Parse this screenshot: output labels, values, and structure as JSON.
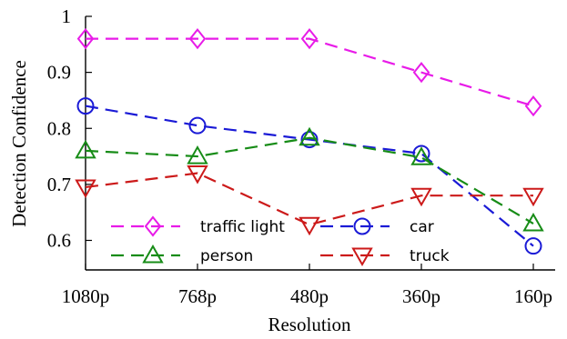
{
  "chart_data": {
    "type": "line",
    "title": "",
    "xlabel": "Resolution",
    "ylabel": "Detection Confidence",
    "x_categories": [
      "1080p",
      "768p",
      "480p",
      "360p",
      "160p"
    ],
    "ylim": [
      0.55,
      1.0
    ],
    "yticks": [
      "0.6",
      "0.7",
      "0.8",
      "0.9",
      "1"
    ],
    "ytick_values": [
      0.6,
      0.7,
      0.8,
      0.9,
      1.0
    ],
    "grid": false,
    "legend_position": "bottom, two columns, inside plot",
    "series": [
      {
        "name": "traffic light",
        "color": "#e81be8",
        "marker": "diamond",
        "values": [
          0.96,
          0.96,
          0.96,
          0.9,
          0.84
        ]
      },
      {
        "name": "car",
        "color": "#1a1ad6",
        "marker": "circle",
        "values": [
          0.84,
          0.805,
          0.78,
          0.755,
          0.59
        ]
      },
      {
        "name": "person",
        "color": "#178c17",
        "marker": "triangle-up",
        "values": [
          0.76,
          0.75,
          0.783,
          0.748,
          0.63
        ]
      },
      {
        "name": "truck",
        "color": "#cc1a1a",
        "marker": "triangle-down",
        "values": [
          0.695,
          0.72,
          0.628,
          0.68,
          0.68
        ]
      }
    ]
  }
}
